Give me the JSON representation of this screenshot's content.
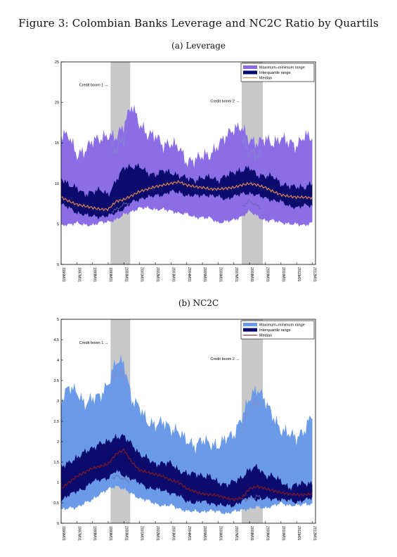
{
  "figure_title": "Figure 3: Colombian Banks Leverage and NC2C Ratio by Quartils",
  "x_tick_labels": [
    "1996M01",
    "1997M01",
    "1998M01",
    "1999M01",
    "2000M01",
    "2001M01",
    "2002M01",
    "2003M01",
    "2004M01",
    "2005M01",
    "2006M01",
    "2007M01",
    "2008M01",
    "2009M01",
    "2010M01",
    "2011M01",
    "2012M01"
  ],
  "chart_data": [
    {
      "type": "area",
      "title": "(a) Leverage",
      "xlabel": "",
      "ylabel": "",
      "x_range": [
        "1996M01",
        "2012M01"
      ],
      "ylim": [
        0,
        25
      ],
      "yticks": [
        0,
        5,
        10,
        15,
        20,
        25
      ],
      "grid": false,
      "legend_position": "top-right",
      "colors": {
        "range": "#8b6ee6",
        "iqr": "#0b0b6e",
        "median": "#f08a4b",
        "shade": "#c8c8c8"
      },
      "shaded_periods": [
        {
          "label": "Credit boom 1",
          "start": 1999.15,
          "end": 2000.4
        },
        {
          "label": "Credit boom 2",
          "start": 2007.5,
          "end": 2008.85
        }
      ],
      "legend": [
        "Maximum–minimum range",
        "Interquartile range",
        "Median"
      ],
      "series": [
        {
          "name": "Median",
          "x": [
            1996,
            1996.5,
            1997,
            1997.5,
            1998,
            1998.5,
            1999,
            1999.5,
            2000,
            2000.5,
            2001,
            2001.5,
            2002,
            2002.5,
            2003,
            2003.5,
            2004,
            2004.5,
            2005,
            2005.5,
            2006,
            2006.5,
            2007,
            2007.5,
            2008,
            2008.5,
            2009,
            2009.5,
            2010,
            2010.5,
            2011,
            2011.5,
            2012
          ],
          "y": [
            8.3,
            7.8,
            7.4,
            7.2,
            7.0,
            6.8,
            6.8,
            7.8,
            8.0,
            8.5,
            9.0,
            9.3,
            9.6,
            9.8,
            10.0,
            10.2,
            9.8,
            9.6,
            9.5,
            9.3,
            9.3,
            9.4,
            9.5,
            9.8,
            10.0,
            9.8,
            9.5,
            9.0,
            8.6,
            8.4,
            8.3,
            8.3,
            8.2
          ]
        },
        {
          "name": "Interquartile range",
          "lower": [
            7.3,
            6.8,
            6.5,
            6.2,
            6.0,
            5.8,
            5.8,
            6.6,
            7.0,
            7.5,
            8.0,
            8.3,
            8.6,
            8.7,
            8.8,
            8.8,
            8.7,
            8.5,
            8.5,
            8.4,
            8.3,
            8.3,
            8.4,
            8.5,
            8.8,
            8.6,
            8.3,
            7.9,
            7.5,
            7.3,
            7.2,
            7.2,
            7.2
          ],
          "upper": [
            10.5,
            9.8,
            9.4,
            9.0,
            8.9,
            8.8,
            8.8,
            10.5,
            12.0,
            12.0,
            11.8,
            11.5,
            11.4,
            11.3,
            11.2,
            11.0,
            10.8,
            10.6,
            10.4,
            10.6,
            10.7,
            11.0,
            11.3,
            11.5,
            11.8,
            11.4,
            11.0,
            10.5,
            10.0,
            9.8,
            9.7,
            9.6,
            9.6
          ]
        },
        {
          "name": "Maximum–minimum range",
          "lower": [
            4.8,
            4.9,
            5.0,
            5.0,
            5.0,
            5.0,
            5.2,
            5.6,
            6.2,
            6.6,
            6.8,
            6.9,
            7.0,
            6.8,
            6.5,
            6.3,
            6.2,
            6.0,
            5.8,
            5.5,
            5.2,
            5.4,
            5.5,
            5.9,
            6.4,
            6.0,
            5.6,
            5.3,
            5.1,
            5.0,
            5.0,
            5.0,
            5.0
          ],
          "upper": [
            16.0,
            15.0,
            14.0,
            14.5,
            15.0,
            15.5,
            15.5,
            16.0,
            18.0,
            19.0,
            17.0,
            16.5,
            16.0,
            15.0,
            14.5,
            14.0,
            13.5,
            13.0,
            13.0,
            13.5,
            14.5,
            16.5,
            17.0,
            16.0,
            15.5,
            15.5,
            15.5,
            15.0,
            15.0,
            15.2,
            15.5,
            15.5,
            15.3
          ]
        }
      ],
      "annotations": [
        {
          "text": "Credit boom 1 →"
        },
        {
          "text": "Credit boom 2 →"
        }
      ]
    },
    {
      "type": "area",
      "title": "(b) NC2C",
      "xlabel": "",
      "ylabel": "",
      "x_range": [
        "1996M01",
        "2012M01"
      ],
      "ylim": [
        0,
        5
      ],
      "yticks": [
        0,
        0.5,
        1,
        1.5,
        2,
        2.5,
        3,
        3.5,
        4,
        4.5,
        5
      ],
      "grid": false,
      "legend_position": "top-right",
      "colors": {
        "range": "#6b9be8",
        "iqr": "#0b0b6e",
        "median": "#8b1a1a",
        "shade": "#c8c8c8"
      },
      "shaded_periods": [
        {
          "label": "Credit boom 1",
          "start": 1999.15,
          "end": 2000.4
        },
        {
          "label": "Credit boom 2",
          "start": 2007.5,
          "end": 2008.85
        }
      ],
      "legend": [
        "Maximum–minimum range",
        "Interquartile range",
        "Median"
      ],
      "series": [
        {
          "name": "Median",
          "x": [
            1996,
            1996.5,
            1997,
            1997.5,
            1998,
            1998.5,
            1999,
            1999.5,
            2000,
            2000.5,
            2001,
            2001.5,
            2002,
            2002.5,
            2003,
            2003.5,
            2004,
            2004.5,
            2005,
            2005.5,
            2006,
            2006.5,
            2007,
            2007.5,
            2008,
            2008.5,
            2009,
            2009.5,
            2010,
            2010.5,
            2011,
            2011.5,
            2012
          ],
          "y": [
            0.85,
            1.0,
            1.15,
            1.25,
            1.35,
            1.4,
            1.45,
            1.7,
            1.8,
            1.5,
            1.3,
            1.25,
            1.2,
            1.15,
            1.05,
            1.0,
            0.85,
            0.78,
            0.72,
            0.7,
            0.68,
            0.62,
            0.58,
            0.62,
            0.85,
            0.9,
            0.85,
            0.8,
            0.75,
            0.72,
            0.7,
            0.7,
            0.72
          ]
        },
        {
          "name": "Interquartile range",
          "lower": [
            0.55,
            0.65,
            0.8,
            0.9,
            1.0,
            1.05,
            1.1,
            1.3,
            1.2,
            1.05,
            0.95,
            0.9,
            0.85,
            0.8,
            0.72,
            0.65,
            0.58,
            0.52,
            0.5,
            0.48,
            0.46,
            0.45,
            0.45,
            0.48,
            0.65,
            0.62,
            0.6,
            0.58,
            0.56,
            0.56,
            0.56,
            0.56,
            0.58
          ],
          "upper": [
            1.3,
            1.5,
            1.65,
            1.75,
            1.85,
            1.9,
            2.0,
            2.2,
            2.1,
            1.9,
            1.7,
            1.6,
            1.5,
            1.45,
            1.4,
            1.35,
            1.25,
            1.2,
            1.15,
            1.1,
            1.05,
            1.0,
            0.95,
            1.1,
            1.35,
            1.4,
            1.2,
            1.1,
            1.0,
            0.95,
            0.95,
            0.95,
            0.95
          ]
        },
        {
          "name": "Maximum–minimum range",
          "lower": [
            0.3,
            0.35,
            0.4,
            0.5,
            0.6,
            0.7,
            0.8,
            0.95,
            0.85,
            0.7,
            0.6,
            0.55,
            0.5,
            0.45,
            0.4,
            0.35,
            0.32,
            0.3,
            0.28,
            0.28,
            0.28,
            0.28,
            0.28,
            0.3,
            0.35,
            0.4,
            0.4,
            0.42,
            0.45,
            0.46,
            0.46,
            0.46,
            0.46
          ]
        },
        {
          "name": "Maximum–minimum range (upper)",
          "upper": [
            3.0,
            3.3,
            3.2,
            3.1,
            3.0,
            3.0,
            3.5,
            4.0,
            4.0,
            3.0,
            2.7,
            2.6,
            2.5,
            2.4,
            2.3,
            2.2,
            2.1,
            2.0,
            1.9,
            1.9,
            2.0,
            2.1,
            2.2,
            2.5,
            3.0,
            3.5,
            3.0,
            2.5,
            2.3,
            2.2,
            2.2,
            2.3,
            2.5
          ]
        }
      ],
      "annotations": [
        {
          "text": "Credit boom 1 →"
        },
        {
          "text": "Credit boom 2 →"
        }
      ]
    }
  ]
}
